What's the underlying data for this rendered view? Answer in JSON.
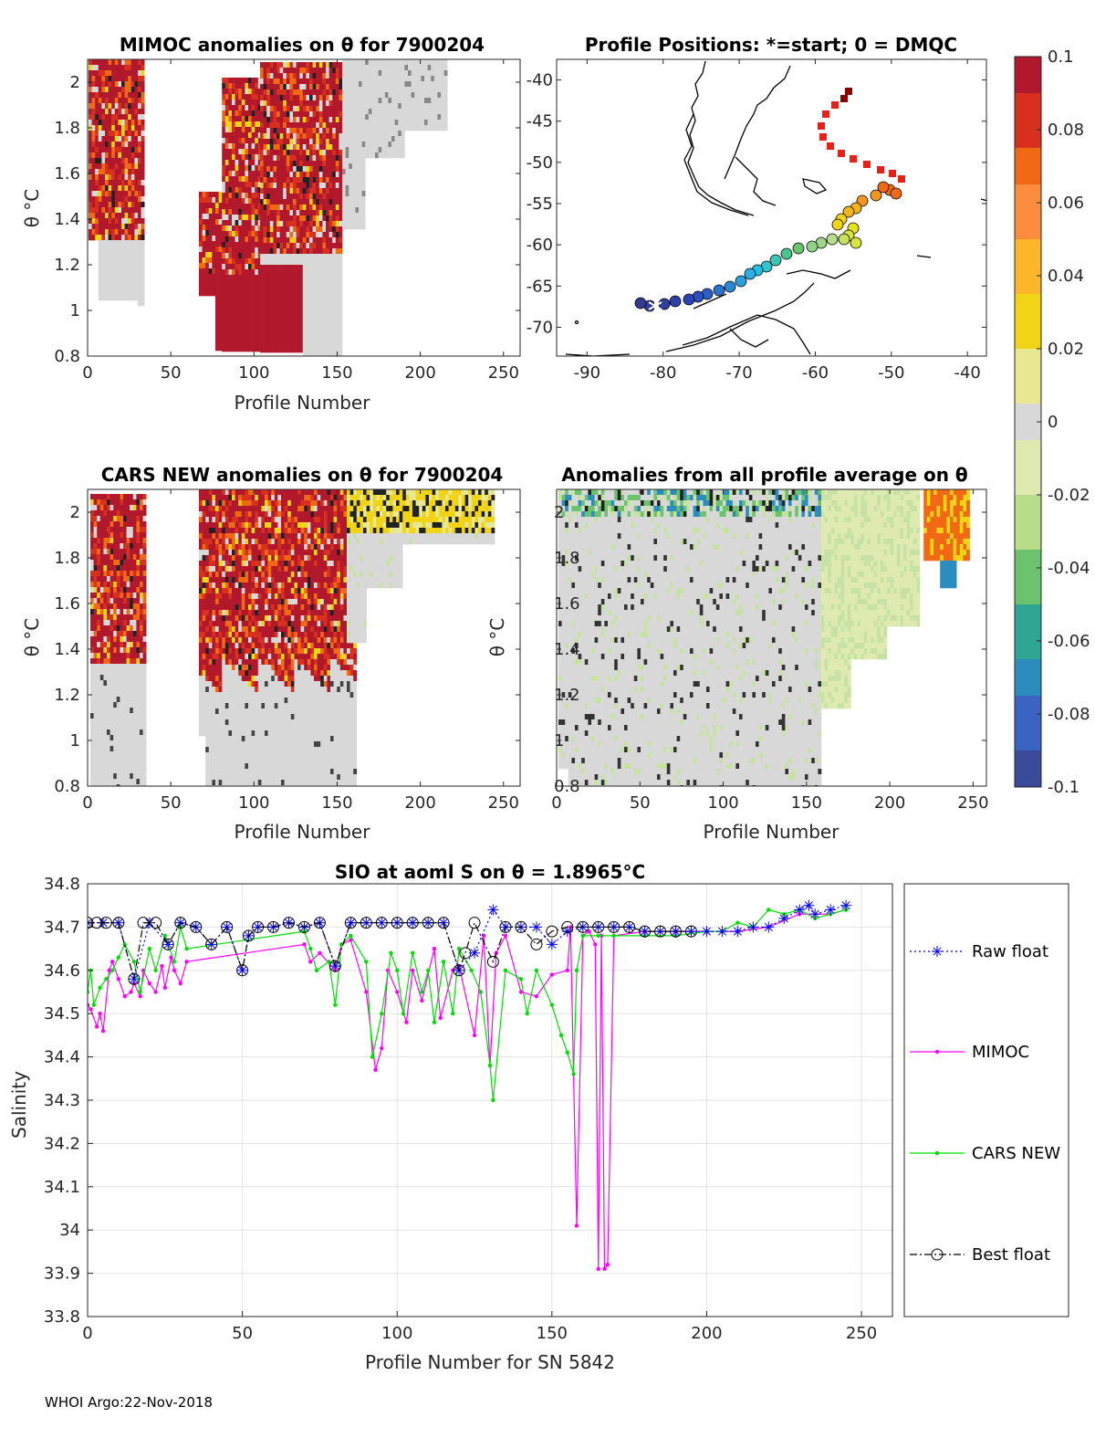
{
  "footer": "WHOI Argo:22-Nov-2018",
  "panel_mimoc": {
    "title": "MIMOC anomalies on θ  for 7900204",
    "xlabel": "Profile Number",
    "ylabel": "θ °C",
    "xticks": [
      "0",
      "50",
      "100",
      "150",
      "200",
      "250"
    ],
    "yticks": [
      "0.8",
      "1",
      "1.2",
      "1.4",
      "1.6",
      "1.8",
      "2"
    ]
  },
  "panel_map": {
    "title": "Profile Positions: *=start; 0 = DMQC",
    "xticks": [
      "-90",
      "-80",
      "-70",
      "-60",
      "-50",
      "-40"
    ],
    "yticks": [
      "-40",
      "-45",
      "-50",
      "-55",
      "-60",
      "-65",
      "-70"
    ]
  },
  "panel_cars": {
    "title": "CARS NEW anomalies on θ for 7900204",
    "xlabel": "Profile Number",
    "ylabel": "θ °C",
    "xticks": [
      "0",
      "50",
      "100",
      "150",
      "200",
      "250"
    ],
    "yticks": [
      "0.8",
      "1",
      "1.2",
      "1.4",
      "1.6",
      "1.8",
      "2"
    ]
  },
  "panel_avg": {
    "title": "Anomalies from all profile average on θ",
    "xlabel": "Profile Number",
    "ylabel": "θ °C",
    "xticks": [
      "0",
      "50",
      "100",
      "150",
      "200",
      "250"
    ],
    "yticks": [
      "0.8",
      "1",
      "1.2",
      "1.4",
      "1.6",
      "1.8",
      "2"
    ]
  },
  "colorbar": {
    "ticks": [
      "0.1",
      "0.08",
      "0.06",
      "0.04",
      "0.02",
      "0",
      "-0.02",
      "-0.04",
      "-0.06",
      "-0.08",
      "-0.1"
    ],
    "colors": [
      "#b2182b",
      "#d7301f",
      "#f16913",
      "#fd8d3c",
      "#fdb52a",
      "#f1d416",
      "#e8e890",
      "#d8d8d8",
      "#dfeab0",
      "#b7dc8a",
      "#6cc36d",
      "#2ea694",
      "#2b8cbe",
      "#3a63c4",
      "#3a4a9a"
    ]
  },
  "chart_data": {
    "type": "line",
    "title": "SIO at aoml S on θ = 1.8965°C",
    "xlabel": "Profile Number for SN 5842",
    "ylabel": "Salinity",
    "xlim": [
      0,
      260
    ],
    "ylim": [
      33.8,
      34.8
    ],
    "xticks": [
      "0",
      "50",
      "100",
      "150",
      "200",
      "250"
    ],
    "yticks": [
      "34.8",
      "34.7",
      "34.6",
      "34.5",
      "34.4",
      "34.3",
      "34.2",
      "34.1",
      "34",
      "33.9",
      "33.8"
    ],
    "grid": true,
    "legend_position": "right (outside)",
    "series": [
      {
        "name": "Raw float",
        "color": "#0000ff",
        "style": "dotted",
        "marker": "star",
        "x": [
          0,
          5,
          10,
          15,
          20,
          26,
          30,
          35,
          40,
          45,
          50,
          52,
          55,
          60,
          65,
          70,
          75,
          80,
          85,
          90,
          95,
          100,
          105,
          110,
          115,
          120,
          125,
          131,
          135,
          140,
          145,
          150,
          155,
          160,
          165,
          170,
          175,
          180,
          185,
          190,
          195,
          200,
          205,
          210,
          215,
          220,
          225,
          230,
          233,
          235,
          240,
          245
        ],
        "y": [
          34.71,
          34.71,
          34.71,
          34.58,
          34.71,
          34.66,
          34.71,
          34.7,
          34.66,
          34.7,
          34.6,
          34.68,
          34.7,
          34.7,
          34.71,
          34.7,
          34.71,
          34.61,
          34.71,
          34.71,
          34.71,
          34.71,
          34.71,
          34.71,
          34.71,
          34.6,
          34.64,
          34.74,
          34.7,
          34.7,
          34.7,
          34.66,
          34.69,
          34.7,
          34.7,
          34.7,
          34.7,
          34.69,
          34.69,
          34.69,
          34.69,
          34.69,
          34.69,
          34.69,
          34.7,
          34.7,
          34.72,
          34.74,
          34.75,
          34.73,
          34.74,
          34.75
        ]
      },
      {
        "name": "MIMOC",
        "color": "#ff00ff",
        "style": "solid",
        "marker": "dot",
        "x": [
          0,
          1,
          3,
          4,
          5,
          7,
          8,
          10,
          12,
          14,
          15,
          17,
          18,
          20,
          22,
          24,
          25,
          27,
          28,
          30,
          32,
          70,
          72,
          75,
          80,
          82,
          85,
          90,
          93,
          95,
          97,
          100,
          103,
          105,
          108,
          112,
          114,
          118,
          120,
          125,
          128,
          130,
          132,
          135,
          140,
          145,
          150,
          155,
          156,
          158,
          160,
          162,
          164,
          165,
          166,
          167,
          168,
          170,
          180,
          190,
          200,
          210,
          220,
          230,
          240,
          245
        ],
        "y": [
          34.52,
          34.51,
          34.47,
          34.5,
          34.46,
          34.6,
          34.62,
          34.58,
          34.54,
          34.55,
          34.57,
          34.54,
          34.6,
          34.57,
          34.55,
          34.61,
          34.56,
          34.63,
          34.6,
          34.57,
          34.62,
          34.66,
          34.62,
          34.64,
          34.6,
          34.66,
          34.67,
          34.55,
          34.37,
          34.42,
          34.6,
          34.55,
          34.48,
          34.6,
          34.53,
          34.65,
          34.49,
          34.6,
          34.61,
          34.45,
          34.68,
          34.38,
          34.64,
          34.68,
          34.55,
          34.54,
          34.59,
          34.6,
          34.7,
          34.01,
          34.68,
          34.69,
          34.66,
          33.91,
          34.68,
          33.91,
          33.92,
          34.68,
          34.69,
          34.69,
          34.69,
          34.69,
          34.7,
          34.73,
          34.73,
          34.74
        ]
      },
      {
        "name": "CARS NEW",
        "color": "#00e000",
        "style": "solid",
        "marker": "dot",
        "x": [
          0,
          1,
          2,
          4,
          6,
          8,
          10,
          12,
          15,
          17,
          20,
          22,
          25,
          28,
          30,
          32,
          70,
          72,
          74,
          78,
          80,
          82,
          85,
          90,
          92,
          95,
          98,
          100,
          102,
          105,
          108,
          110,
          112,
          115,
          118,
          120,
          124,
          127,
          130,
          131,
          135,
          140,
          142,
          145,
          150,
          153,
          155,
          157,
          158,
          160,
          165,
          170,
          180,
          190,
          200,
          205,
          210,
          215,
          220,
          225,
          230,
          235,
          240,
          245
        ],
        "y": [
          34.55,
          34.6,
          34.52,
          34.56,
          34.58,
          34.6,
          34.63,
          34.66,
          34.62,
          34.55,
          34.65,
          34.6,
          34.68,
          34.62,
          34.7,
          34.65,
          34.69,
          34.65,
          34.6,
          34.62,
          34.52,
          34.66,
          34.68,
          34.62,
          34.4,
          34.5,
          34.64,
          34.6,
          34.5,
          34.64,
          34.55,
          34.6,
          34.48,
          34.62,
          34.5,
          34.65,
          34.6,
          34.55,
          34.38,
          34.3,
          34.6,
          34.58,
          34.5,
          34.6,
          34.52,
          34.45,
          34.41,
          34.36,
          34.6,
          34.68,
          34.68,
          34.68,
          34.68,
          34.68,
          34.69,
          34.69,
          34.71,
          34.7,
          34.74,
          34.73,
          34.74,
          34.72,
          34.73,
          34.74
        ]
      },
      {
        "name": "Best float",
        "color": "#000000",
        "style": "dash-dot",
        "marker": "circle",
        "x": [
          0,
          3,
          6,
          10,
          15,
          18,
          22,
          26,
          30,
          35,
          40,
          45,
          50,
          52,
          55,
          60,
          65,
          70,
          75,
          80,
          85,
          90,
          95,
          100,
          105,
          110,
          115,
          120,
          122,
          125,
          131,
          135,
          140,
          145,
          150,
          155,
          160,
          165,
          170,
          175,
          180,
          185,
          190,
          195
        ],
        "y": [
          34.71,
          34.71,
          34.71,
          34.71,
          34.58,
          34.71,
          34.71,
          34.66,
          34.71,
          34.7,
          34.66,
          34.7,
          34.6,
          34.68,
          34.7,
          34.7,
          34.71,
          34.7,
          34.71,
          34.61,
          34.71,
          34.71,
          34.71,
          34.71,
          34.71,
          34.71,
          34.71,
          34.6,
          34.64,
          34.71,
          34.62,
          34.7,
          34.7,
          34.66,
          34.69,
          34.7,
          34.7,
          34.7,
          34.7,
          34.7,
          34.69,
          34.69,
          34.69,
          34.69
        ]
      }
    ]
  }
}
